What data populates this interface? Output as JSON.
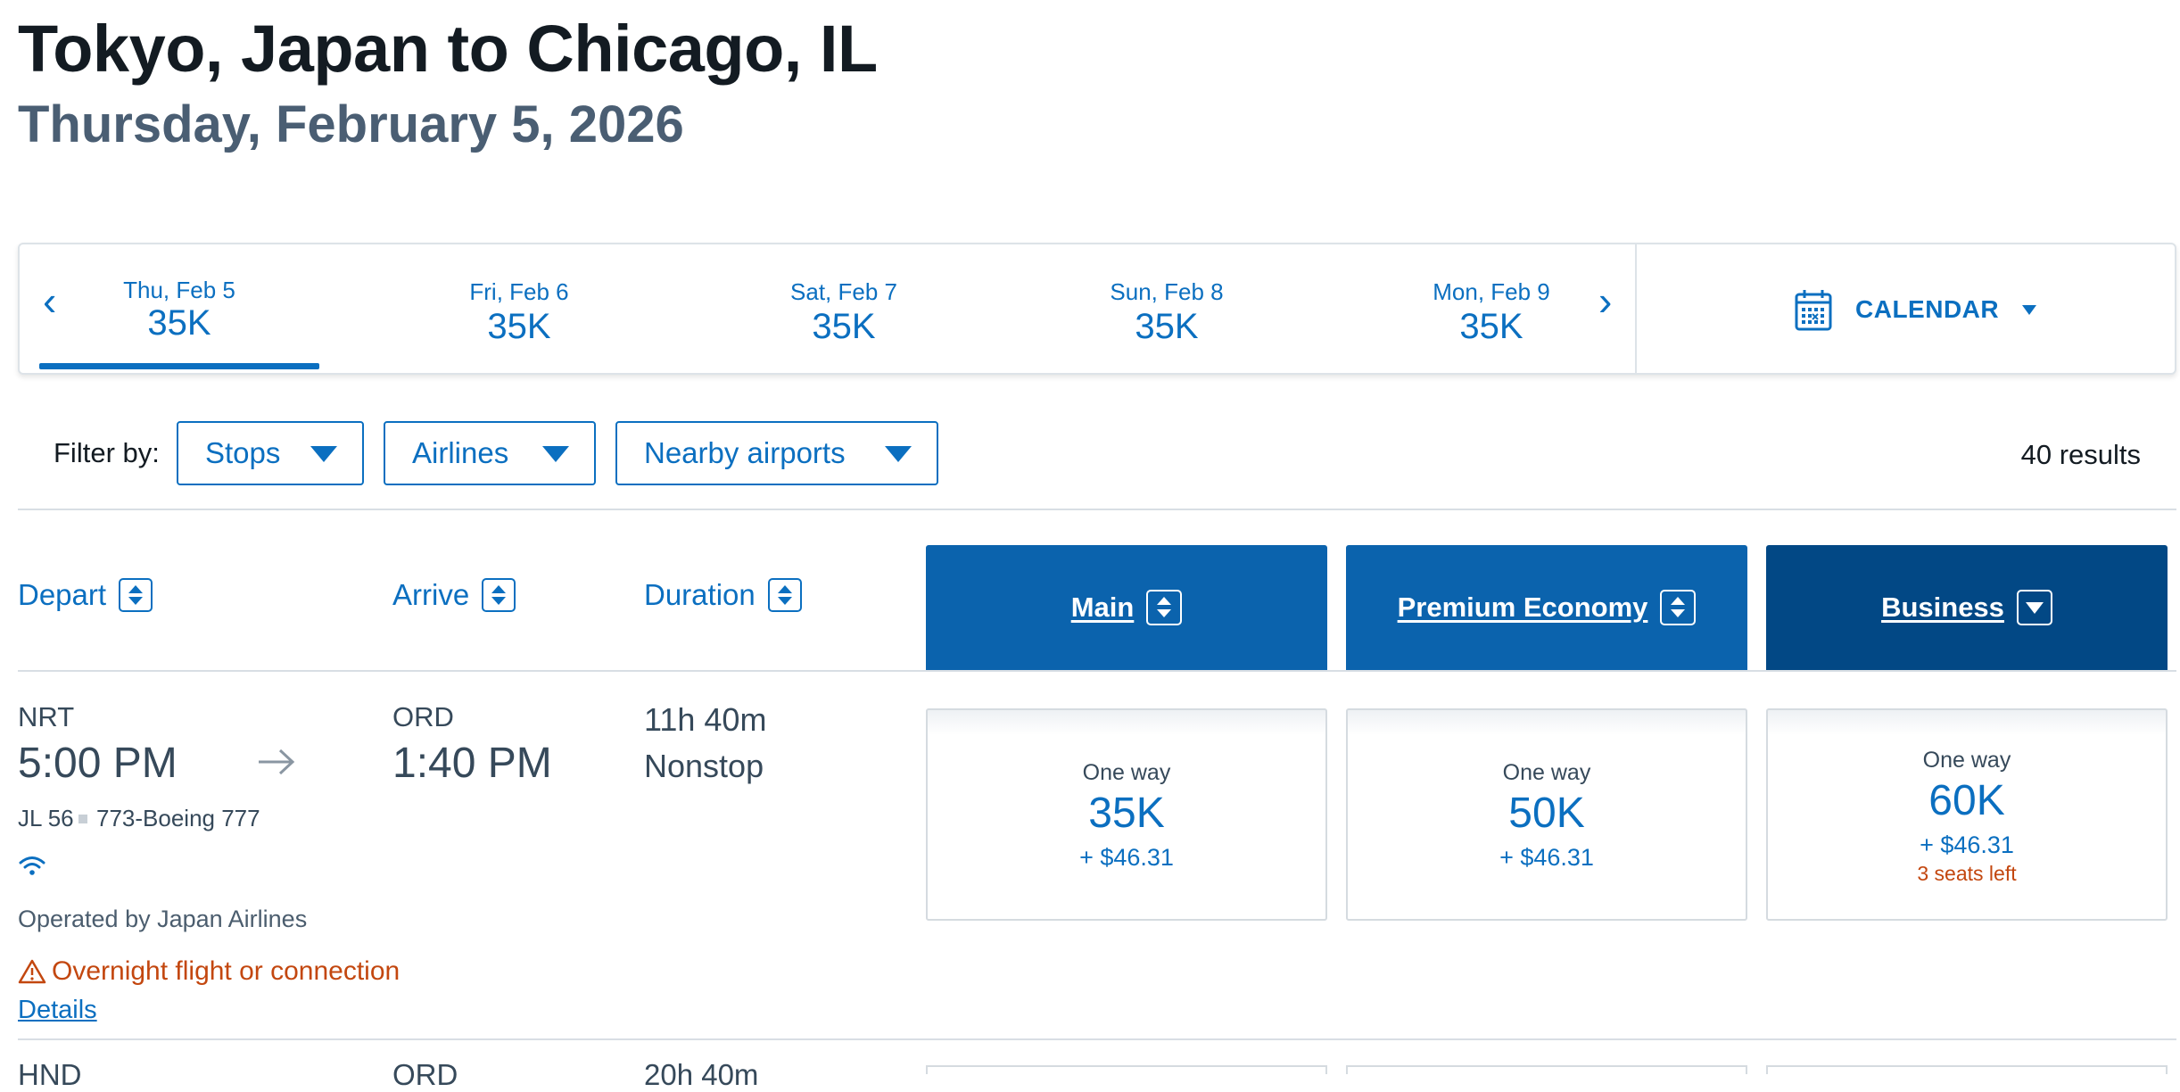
{
  "header": {
    "title": "Tokyo, Japan to Chicago, IL",
    "subtitle": "Thursday, February 5, 2026"
  },
  "date_strip": {
    "tabs": [
      {
        "label": "Thu, Feb 5",
        "value": "35K",
        "selected": true
      },
      {
        "label": "Fri, Feb 6",
        "value": "35K",
        "selected": false
      },
      {
        "label": "Sat, Feb 7",
        "value": "35K",
        "selected": false
      },
      {
        "label": "Sun, Feb 8",
        "value": "35K",
        "selected": false
      },
      {
        "label": "Mon, Feb 9",
        "value": "35K",
        "selected": false
      }
    ],
    "prev_icon": "chevron-left-icon",
    "next_icon": "chevron-right-icon",
    "prev_glyph": "‹",
    "next_glyph": "›",
    "calendar_label": "CALENDAR",
    "calendar_icon": "calendar-icon"
  },
  "filters": {
    "label": "Filter by:",
    "buttons": [
      "Stops",
      "Airlines",
      "Nearby airports"
    ],
    "results": "40 results"
  },
  "sort_headers": {
    "depart": "Depart",
    "arrive": "Arrive",
    "duration": "Duration"
  },
  "cabins": [
    {
      "label": "Main",
      "color": "#0b63ad",
      "sort": "both"
    },
    {
      "label": "Premium Economy",
      "color": "#0b63ad",
      "sort": "both"
    },
    {
      "label": "Business",
      "color": "#024885",
      "sort": "down"
    }
  ],
  "flights": [
    {
      "origin": "NRT",
      "depart_time": "5:00 PM",
      "destination": "ORD",
      "arrive_time": "1:40 PM",
      "duration": "11h 40m",
      "stops": "Nonstop",
      "flight_number": "JL 56",
      "aircraft": "773-Boeing 777",
      "wifi_icon": "wifi-icon",
      "operated_by": "Operated by Japan Airlines",
      "warning": "Overnight flight or connection",
      "details": "Details",
      "fares": [
        {
          "type": "One way",
          "miles": "35K",
          "tax": "+ $46.31",
          "seats": ""
        },
        {
          "type": "One way",
          "miles": "50K",
          "tax": "+ $46.31",
          "seats": ""
        },
        {
          "type": "One way",
          "miles": "60K",
          "tax": "+ $46.31",
          "seats": "3 seats left"
        }
      ]
    },
    {
      "origin": "HND",
      "destination": "ORD",
      "duration": "20h 40m"
    }
  ],
  "colors": {
    "accent": "#0b6fc0",
    "cabin_dark": "#024885",
    "warning": "#c3470f"
  }
}
